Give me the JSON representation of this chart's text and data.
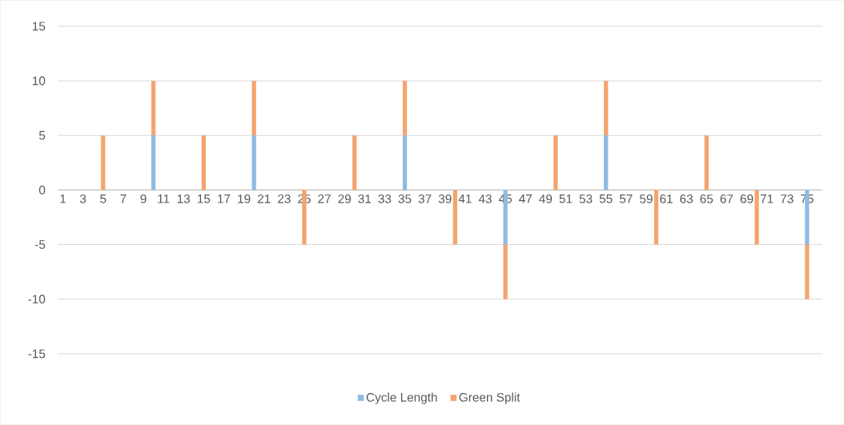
{
  "chart_data": {
    "type": "bar",
    "stacked": true,
    "categories": [
      "1",
      null,
      "3",
      null,
      "5",
      null,
      "7",
      null,
      "9",
      null,
      "11",
      null,
      "13",
      null,
      "15",
      null,
      "17",
      null,
      "19",
      null,
      "21",
      null,
      "23",
      null,
      "25",
      null,
      "27",
      null,
      "29",
      null,
      "31",
      null,
      "33",
      null,
      "35",
      null,
      "37",
      null,
      "39",
      null,
      "41",
      null,
      "43",
      null,
      "45",
      null,
      "47",
      null,
      "49",
      null,
      "51",
      null,
      "53",
      null,
      "55",
      null,
      "57",
      null,
      "59",
      null,
      "61",
      null,
      "63",
      null,
      "65",
      null,
      "67",
      null,
      "69",
      null,
      "71",
      null,
      "73",
      null,
      "75",
      null
    ],
    "series": [
      {
        "name": "Cycle Length",
        "color": "#8fbbe2",
        "values": [
          null,
          null,
          null,
          null,
          null,
          null,
          null,
          null,
          null,
          5,
          null,
          null,
          null,
          null,
          null,
          null,
          null,
          null,
          null,
          5,
          null,
          null,
          null,
          null,
          null,
          null,
          null,
          null,
          null,
          null,
          null,
          null,
          null,
          null,
          5,
          null,
          null,
          null,
          null,
          null,
          null,
          null,
          null,
          null,
          -5,
          null,
          null,
          null,
          null,
          null,
          null,
          null,
          null,
          null,
          5,
          null,
          null,
          null,
          null,
          null,
          null,
          null,
          null,
          null,
          null,
          null,
          null,
          null,
          null,
          null,
          null,
          null,
          null,
          null,
          -5,
          null
        ]
      },
      {
        "name": "Green Split",
        "color": "#f4a46f",
        "values": [
          null,
          null,
          null,
          null,
          5,
          null,
          null,
          null,
          null,
          5,
          null,
          null,
          null,
          null,
          5,
          null,
          null,
          null,
          null,
          5,
          null,
          null,
          null,
          null,
          -5,
          null,
          null,
          null,
          null,
          5,
          null,
          null,
          null,
          null,
          5,
          null,
          null,
          null,
          null,
          -5,
          null,
          null,
          null,
          null,
          -5,
          null,
          null,
          null,
          null,
          5,
          null,
          null,
          null,
          null,
          5,
          null,
          null,
          null,
          null,
          -5,
          null,
          null,
          null,
          null,
          5,
          null,
          null,
          null,
          null,
          -5,
          null,
          null,
          null,
          null,
          -5,
          null
        ]
      }
    ],
    "ylim": [
      -15,
      15
    ],
    "yticks": [
      -15,
      -10,
      -5,
      0,
      5,
      10,
      15
    ],
    "grid": "y",
    "legend": "bottom"
  }
}
